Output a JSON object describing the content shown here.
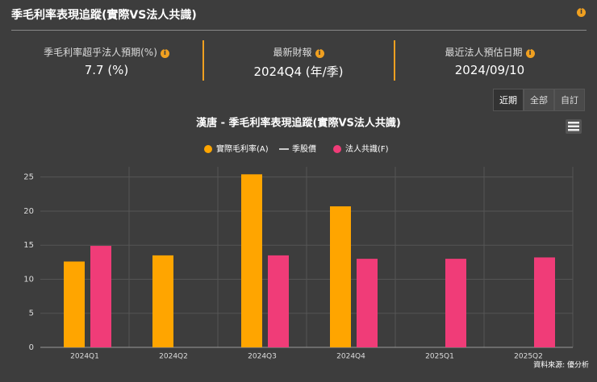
{
  "header": {
    "title": "季毛利率表現追蹤(實際VS法人共識)"
  },
  "stats": [
    {
      "label": "季毛利率超乎法人預期(%)",
      "value": "7.7 (%)"
    },
    {
      "label": "最新財報",
      "value": "2024Q4 (年/季)"
    },
    {
      "label": "最近法人預估日期",
      "value": "2024/09/10"
    }
  ],
  "buttons": [
    "近期",
    "全部",
    "自訂"
  ],
  "source": "資料來源: 優分析",
  "chart_data": {
    "type": "bar",
    "title": "漢唐 - 季毛利率表現追蹤(實際VS法人共識)",
    "categories": [
      "2024Q1",
      "2024Q2",
      "2024Q3",
      "2024Q4",
      "2025Q1",
      "2025Q2"
    ],
    "series": [
      {
        "name": "實際毛利率(A)",
        "color": "#ffa500",
        "values": [
          12.6,
          13.5,
          25.4,
          20.7,
          null,
          null
        ]
      },
      {
        "name": "季股價",
        "color": "#cccccc",
        "type": "line",
        "values": [
          null,
          null,
          null,
          null,
          null,
          null
        ]
      },
      {
        "name": "法人共識(F)",
        "color": "#f03c78",
        "values": [
          14.9,
          null,
          13.5,
          13.0,
          13.0,
          13.2
        ]
      }
    ],
    "ylim": [
      0,
      26.5
    ],
    "yticks": [
      0,
      5,
      10,
      15,
      20,
      25
    ],
    "grid": true
  }
}
